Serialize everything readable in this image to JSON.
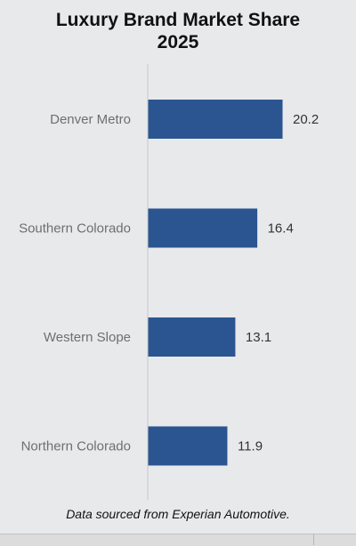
{
  "chart_data": {
    "type": "bar",
    "orientation": "horizontal",
    "title_line1": "Luxury Brand Market Share",
    "title_line2": "2025",
    "categories": [
      "Denver Metro",
      "Southern Colorado",
      "Western Slope",
      "Northern Colorado"
    ],
    "values": [
      20.2,
      16.4,
      13.1,
      11.9
    ],
    "value_labels": [
      "20.2",
      "16.4",
      "13.1",
      "11.9"
    ],
    "xlim": [
      0,
      25
    ],
    "grid": false,
    "bar_color": "#2b5591",
    "axis_color": "#c8c8c8"
  },
  "footnote": "Data sourced from Experian Automotive."
}
